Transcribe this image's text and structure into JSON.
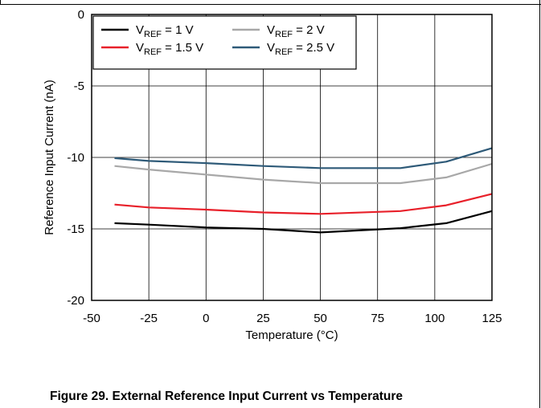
{
  "figure": {
    "caption": "Figure 29. External Reference Input Current vs Temperature"
  },
  "chart_data": {
    "type": "line",
    "xlabel": "Temperature (°C)",
    "ylabel": "Reference Input Current (nA)",
    "xlim": [
      -50,
      125
    ],
    "ylim": [
      -20,
      0
    ],
    "xticks": [
      -50,
      -25,
      0,
      25,
      50,
      75,
      100,
      125
    ],
    "yticks": [
      0,
      -5,
      -10,
      -15,
      -20
    ],
    "grid": true,
    "legend_position": "top-left",
    "x": [
      -40,
      -25,
      0,
      25,
      50,
      85,
      105,
      125
    ],
    "series": [
      {
        "name_main": "V",
        "name_sub": "REF",
        "name_rest": " = 1 V",
        "color": "#000000",
        "values": [
          -14.6,
          -14.7,
          -14.9,
          -15.0,
          -15.25,
          -14.95,
          -14.6,
          -13.75
        ]
      },
      {
        "name_main": "V",
        "name_sub": "REF",
        "name_rest": " = 1.5 V",
        "color": "#e8202a",
        "values": [
          -13.3,
          -13.5,
          -13.65,
          -13.85,
          -13.95,
          -13.75,
          -13.35,
          -12.55
        ]
      },
      {
        "name_main": "V",
        "name_sub": "REF",
        "name_rest": " = 2 V",
        "color": "#a8a8a8",
        "values": [
          -10.6,
          -10.85,
          -11.2,
          -11.55,
          -11.8,
          -11.8,
          -11.4,
          -10.45
        ]
      },
      {
        "name_main": "V",
        "name_sub": "REF",
        "name_rest": " = 2.5 V",
        "color": "#2e5a78",
        "values": [
          -10.05,
          -10.25,
          -10.4,
          -10.6,
          -10.75,
          -10.75,
          -10.3,
          -9.35
        ]
      }
    ]
  }
}
